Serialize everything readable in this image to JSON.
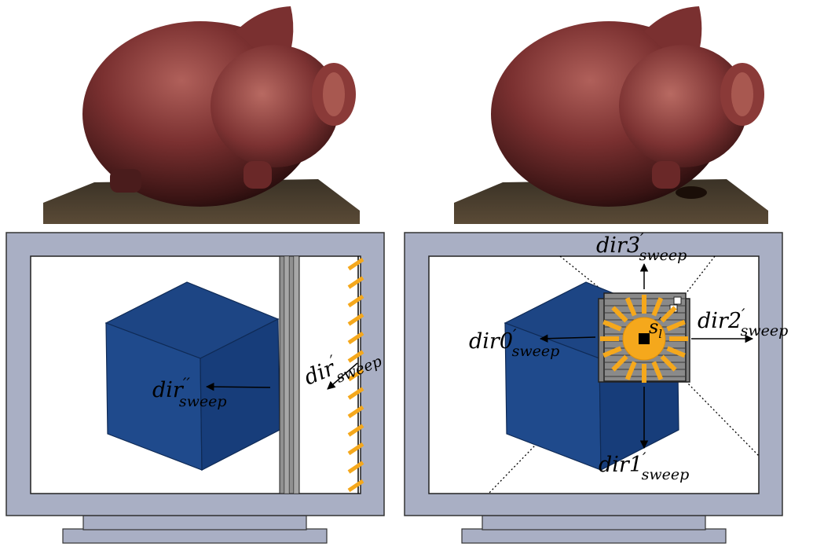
{
  "figure": {
    "photo_left_alt": "piggy-photo",
    "photo_right_alt": "piggy-photo",
    "left_panel": {
      "label_dir_double": {
        "base": "dir",
        "prime": "′′",
        "sub": "sweep"
      },
      "label_dir_single": {
        "base": "dir",
        "prime": "′",
        "sub": "sweep"
      }
    },
    "right_panel": {
      "label_dir0": {
        "base": "dir0",
        "prime": "′",
        "sub": "sweep"
      },
      "label_dir1": {
        "base": "dir1",
        "prime": "′",
        "sub": "sweep"
      },
      "label_dir2": {
        "base": "dir2",
        "prime": "′",
        "sub": "sweep"
      },
      "label_dir3": {
        "base": "dir3",
        "prime": "′",
        "sub": "sweep"
      },
      "label_source": {
        "base": "s",
        "prime": "′",
        "sub": "l"
      }
    },
    "colors": {
      "monitor_frame": "#a9afc4",
      "cube_front": "#1f4a8c",
      "cube_top": "#1d4584",
      "cube_side": "#173d7a",
      "light_yellow": "#f5a81c",
      "grid_gray": "#808080",
      "pig_skin": "#8a3a3a"
    }
  }
}
